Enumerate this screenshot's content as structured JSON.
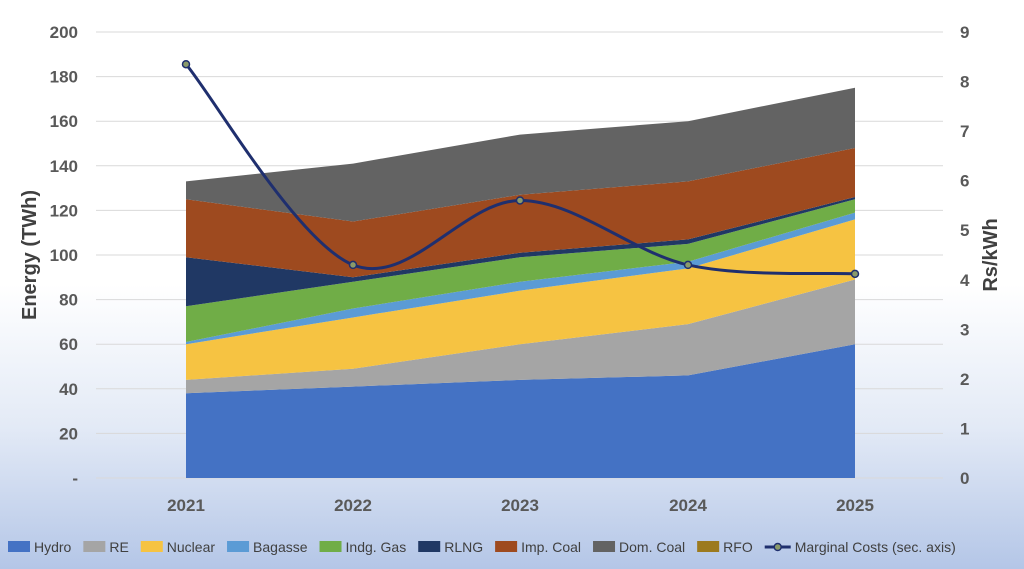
{
  "chart_data": {
    "type": "area",
    "stacked": true,
    "categories": [
      "2021",
      "2022",
      "2023",
      "2024",
      "2025"
    ],
    "series": [
      {
        "name": "Hydro",
        "color": "#4472C4",
        "values": [
          38,
          41,
          44,
          46,
          60
        ]
      },
      {
        "name": "RE",
        "color": "#A5A5A5",
        "values": [
          6,
          8,
          16,
          23,
          29
        ]
      },
      {
        "name": "Nuclear",
        "color": "#F6C342",
        "values": [
          16,
          23,
          24,
          25,
          27
        ]
      },
      {
        "name": "Bagasse",
        "color": "#5B9BD5",
        "values": [
          1,
          4,
          4,
          3,
          3
        ]
      },
      {
        "name": "Indg. Gas",
        "color": "#70AD47",
        "values": [
          16,
          12,
          11,
          8,
          6
        ]
      },
      {
        "name": "RLNG",
        "color": "#203864",
        "values": [
          22,
          2,
          2,
          2,
          1
        ]
      },
      {
        "name": "Imp. Coal",
        "color": "#9E4A1F",
        "values": [
          26,
          25,
          26,
          26,
          22
        ]
      },
      {
        "name": "Dom. Coal",
        "color": "#636363",
        "values": [
          8,
          26,
          27,
          27,
          27
        ]
      },
      {
        "name": "RFO",
        "color": "#9C7A1E",
        "values": [
          0,
          0,
          0,
          0,
          0
        ]
      }
    ],
    "line_series": {
      "name": "Marginal Costs (sec. axis)",
      "color": "#1F2F6E",
      "values": [
        8.35,
        4.3,
        5.6,
        4.3,
        4.12
      ]
    },
    "ylabel": "Energy (TWh)",
    "y2label": "Rs/kWh",
    "ylim": [
      0,
      200
    ],
    "y2lim": [
      0,
      9
    ],
    "y_ticks": [
      "-",
      "20",
      "40",
      "60",
      "80",
      "100",
      "120",
      "140",
      "160",
      "180",
      "200"
    ],
    "y2_ticks": [
      "0",
      "1",
      "2",
      "3",
      "4",
      "5",
      "6",
      "7",
      "8",
      "9"
    ],
    "grid": true,
    "legend_position": "bottom"
  }
}
